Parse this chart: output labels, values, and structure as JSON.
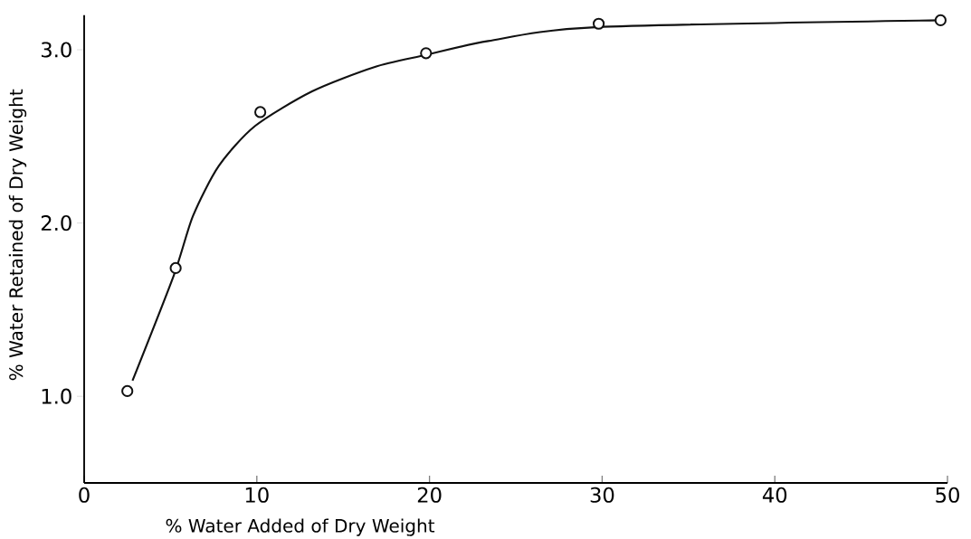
{
  "chart_data": {
    "type": "scatter",
    "xlabel": "% Water Added of Dry Weight",
    "ylabel": "% Water Retained of Dry Weight",
    "xlim": [
      0,
      50
    ],
    "xticks": [
      0,
      10,
      20,
      30,
      40,
      50
    ],
    "ylim": [
      0.5,
      3.2
    ],
    "yticks": [
      {
        "value": 1,
        "label": "1.0"
      },
      {
        "value": 2,
        "label": "2.0"
      },
      {
        "value": 3,
        "label": "3.0"
      }
    ],
    "series": [
      {
        "marker": "circle",
        "color": "#111111",
        "x": [
          2.5,
          5.3,
          10.2,
          19.8,
          29.8,
          49.6
        ],
        "values": [
          1.03,
          1.74,
          2.64,
          2.98,
          3.15,
          3.17
        ]
      },
      {
        "type": "line",
        "marker": "none",
        "line_style": "solid",
        "color": "#111111",
        "x": [
          2.8,
          5.2,
          6.3,
          7.8,
          9.9,
          13.2,
          16.8,
          19.8,
          23.4,
          29.6,
          49.6
        ],
        "values": [
          1.09,
          1.7,
          2.04,
          2.33,
          2.56,
          2.76,
          2.9,
          2.97,
          3.05,
          3.13,
          3.17
        ]
      }
    ]
  }
}
